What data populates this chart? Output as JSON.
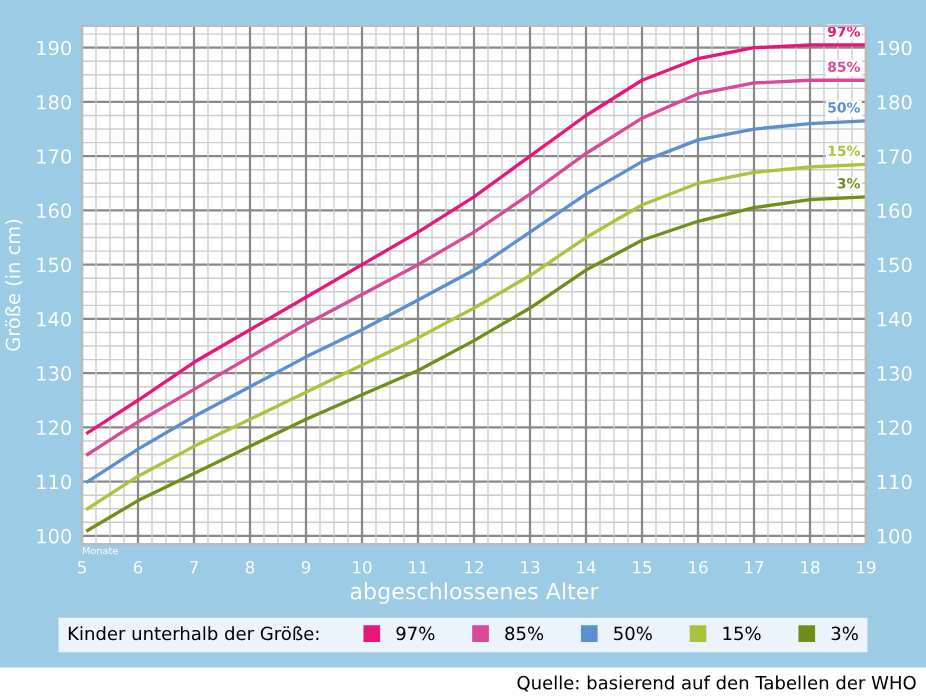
{
  "chart_data": {
    "type": "line",
    "xlabel": "abgeschlossenes Alter",
    "ylabel": "Größe (in cm)",
    "legend_title": "Kinder unterhalb der Größe:",
    "legend": "bottom",
    "grid": true,
    "marker": "none",
    "line_style": "solid",
    "annotations": [
      "Monate",
      "Quelle: basierend auf den Tabellen der WHO"
    ],
    "xlim": [
      5,
      19
    ],
    "ylim": [
      98.5,
      194
    ],
    "y2lim": [
      98.5,
      194
    ],
    "xticks": [
      5,
      6,
      7,
      8,
      9,
      10,
      11,
      12,
      13,
      14,
      15,
      16,
      17,
      18,
      19
    ],
    "yticks": [
      100,
      110,
      120,
      130,
      140,
      150,
      160,
      170,
      180,
      190
    ],
    "y2ticks": [
      100,
      110,
      120,
      130,
      140,
      150,
      160,
      170,
      180,
      190
    ],
    "x": [
      5.1,
      6,
      7,
      8,
      9,
      10,
      11,
      12,
      13,
      14,
      15,
      16,
      17,
      18,
      19
    ],
    "series": [
      {
        "name": "97%",
        "color": "#e8157a",
        "values": [
          119,
          125,
          132,
          138,
          144,
          150,
          156,
          162.5,
          170,
          177.5,
          184,
          188,
          190,
          190.5,
          190.5
        ]
      },
      {
        "name": "85%",
        "color": "#d9489a",
        "values": [
          115,
          121,
          127,
          133,
          139,
          144.5,
          150,
          156,
          163,
          170.5,
          177,
          181.5,
          183.5,
          184,
          184
        ]
      },
      {
        "name": "50%",
        "color": "#5b8fd0",
        "values": [
          110,
          116,
          122,
          127.5,
          133,
          138,
          143.5,
          149,
          156,
          163,
          169,
          173,
          175,
          176,
          176.5
        ]
      },
      {
        "name": "15%",
        "color": "#a8c43c",
        "values": [
          105,
          111,
          116.5,
          121.5,
          126.5,
          131.5,
          136.5,
          142,
          148,
          155,
          161,
          165,
          167,
          168,
          168.5
        ]
      },
      {
        "name": "3%",
        "color": "#6f8f1a",
        "values": [
          101,
          106.5,
          111.5,
          116.5,
          121.5,
          126,
          130.5,
          136,
          142,
          149,
          154.5,
          158,
          160.5,
          162,
          162.5
        ]
      }
    ]
  }
}
